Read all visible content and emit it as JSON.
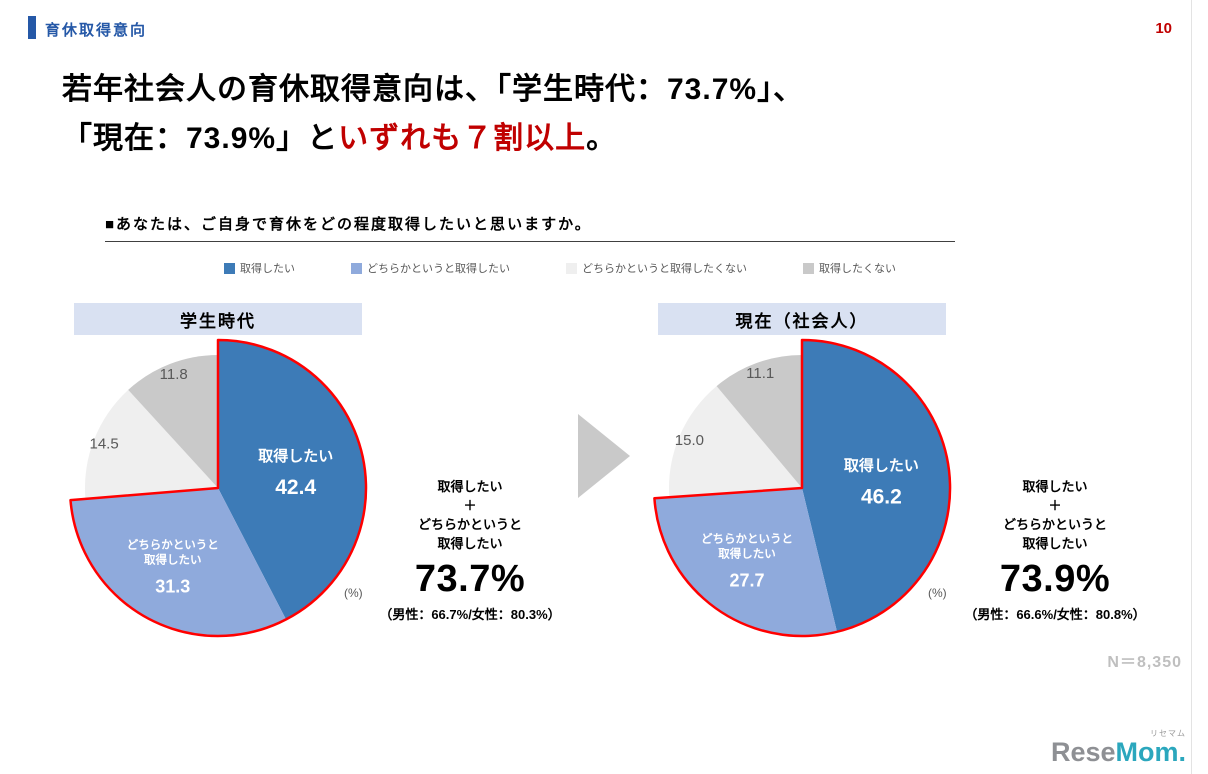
{
  "header": {
    "section_label": "育休取得意向",
    "page_number": "10"
  },
  "title": {
    "line1": "若年社会人の育休取得意向は、「学生時代：73.7%」、",
    "line2_prefix": "「現在：73.9%」と",
    "line2_red": "いずれも７割以上",
    "line2_suffix": "。"
  },
  "question": "■あなたは、ご自身で育休をどの程度取得したいと思いますか。",
  "legend": {
    "items": [
      {
        "label": "取得したい",
        "color": "#3D7BB7"
      },
      {
        "label": "どちらかというと取得したい",
        "color": "#8FAADC"
      },
      {
        "label": "どちらかというと取得したくない",
        "color": "#EFEFEF"
      },
      {
        "label": "取得したくない",
        "color": "#C9C9C9"
      }
    ]
  },
  "chart_data": [
    {
      "type": "pie",
      "title": "学生時代",
      "unit": "(%)",
      "slices": [
        {
          "label": "取得したい",
          "value": 42.4,
          "color": "#3D7BB7",
          "highlight": true
        },
        {
          "label": "どちらかというと取得したい",
          "label_lines": [
            "どちらかというと",
            "取得したい"
          ],
          "value": 31.3,
          "color": "#8FAADC",
          "highlight": true
        },
        {
          "label": "どちらかというと取得したくない",
          "value": 14.5,
          "color": "#EFEFEF",
          "highlight": false
        },
        {
          "label": "取得したくない",
          "value": 11.8,
          "color": "#C9C9C9",
          "highlight": false
        }
      ],
      "summary": {
        "lines": [
          "取得したい",
          "＋",
          "どちらかというと",
          "取得したい"
        ],
        "total": "73.7%",
        "breakdown": "（男性：66.7%/女性：80.3%）"
      }
    },
    {
      "type": "pie",
      "title": "現在（社会人）",
      "unit": "(%)",
      "slices": [
        {
          "label": "取得したい",
          "value": 46.2,
          "color": "#3D7BB7",
          "highlight": true
        },
        {
          "label": "どちらかというと取得したい",
          "label_lines": [
            "どちらかというと",
            "取得したい"
          ],
          "value": 27.7,
          "color": "#8FAADC",
          "highlight": true
        },
        {
          "label": "どちらかというと取得したくない",
          "value": 15.0,
          "color": "#EFEFEF",
          "highlight": false
        },
        {
          "label": "取得したくない",
          "value": 11.1,
          "color": "#C9C9C9",
          "highlight": false
        }
      ],
      "summary": {
        "lines": [
          "取得したい",
          "＋",
          "どちらかというと",
          "取得したい"
        ],
        "total": "73.9%",
        "breakdown": "（男性：66.6%/女性：80.8%）"
      }
    }
  ],
  "sample_size": "N＝8,350",
  "logo": {
    "ruby": "リセマム",
    "gray_part": "Rese",
    "accent_part": "Mom."
  },
  "colors": {
    "accent_blue": "#2558A7",
    "title_red": "#C00000",
    "band_bg": "#D9E1F2",
    "highlight_outline": "#FF0000",
    "pie_blue": "#3D7BB7",
    "pie_light_blue": "#8FAADC",
    "pie_light_gray": "#EFEFEF",
    "pie_gray": "#C9C9C9",
    "arrow_gray": "#C9C9C9",
    "sample_gray": "#BFBFBF"
  }
}
